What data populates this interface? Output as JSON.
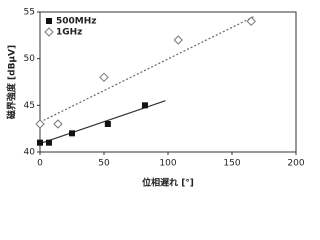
{
  "chart_data": {
    "type": "scatter",
    "x_label": "位相遅れ [°]",
    "y_label": "磁界強度 [dBμV]",
    "xlim": [
      0,
      200
    ],
    "xticks": [
      0,
      50,
      100,
      150,
      200
    ],
    "ylim": [
      40,
      55
    ],
    "yticks": [
      40,
      45,
      50,
      55
    ],
    "grid": false,
    "legend": "upper left",
    "series": [
      {
        "name": "500MHz",
        "color": "#111111",
        "marker": "square",
        "x": [
          0,
          7,
          25,
          53,
          82
        ],
        "values": [
          41,
          41,
          42,
          43,
          45
        ],
        "trend": {
          "x": [
            0,
            98
          ],
          "values": [
            40.9,
            45.5
          ],
          "dash": "none",
          "color": "#333333"
        }
      },
      {
        "name": "1GHz",
        "color": "#777777",
        "marker": "diamond",
        "x": [
          0,
          14,
          50,
          108,
          165
        ],
        "values": [
          43,
          43,
          48,
          52,
          54
        ],
        "trend": {
          "x": [
            0,
            167
          ],
          "values": [
            43.2,
            54.5
          ],
          "dash": "2,2",
          "color": "#666666"
        }
      }
    ]
  }
}
